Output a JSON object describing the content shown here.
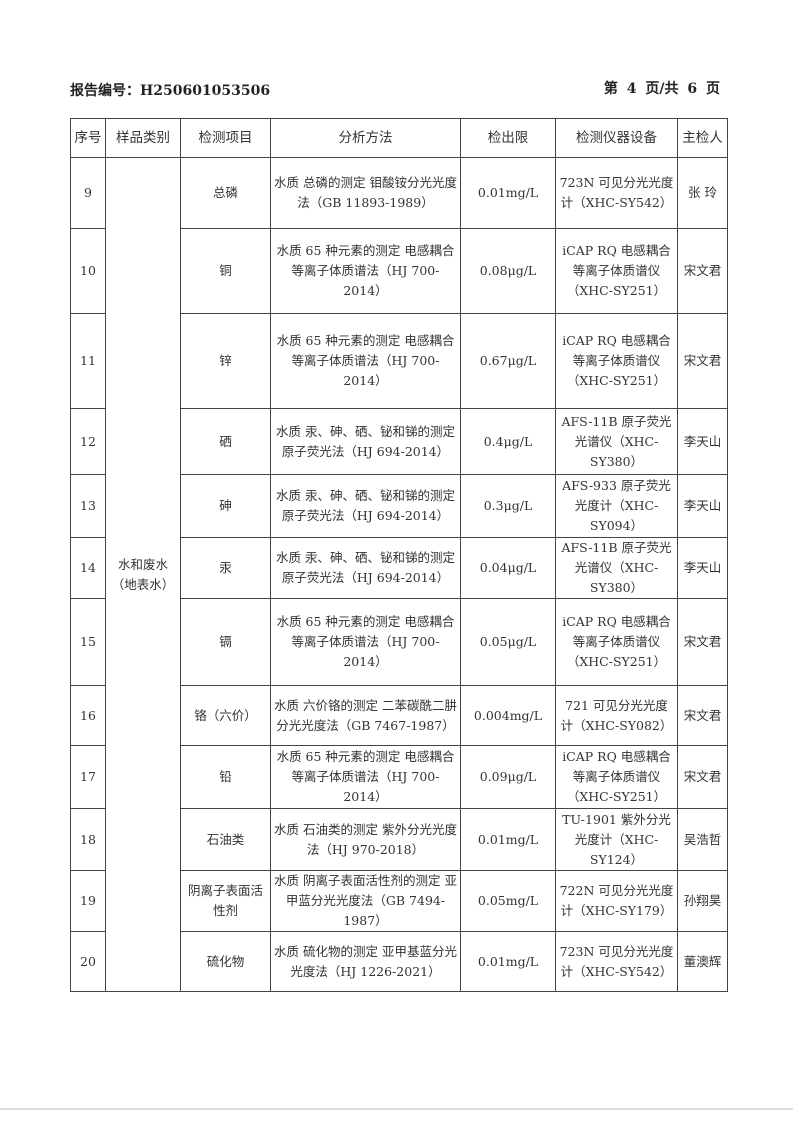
{
  "header": {
    "report_no_label": "报告编号：H250601053506",
    "page_label": "第 4 页/共 6 页"
  },
  "table": {
    "columns": [
      "序号",
      "样品类别",
      "检测项目",
      "分析方法",
      "检出限",
      "检测仪器设备",
      "主检人"
    ],
    "sample_category": "水和废水（地表水）",
    "rows": [
      {
        "no": "9",
        "item": "总磷",
        "method": "水质 总磷的测定 钼酸铵分光光度法（GB 11893-1989）",
        "limit": "0.01mg/L",
        "instrument": "723N 可见分光光度计（XHC-SY542）",
        "inspector": "张 玲"
      },
      {
        "no": "10",
        "item": "铜",
        "method": "水质 65 种元素的测定 电感耦合等离子体质谱法（HJ 700-2014）",
        "limit": "0.08μg/L",
        "instrument": "iCAP RQ 电感耦合等离子体质谱仪（XHC-SY251）",
        "inspector": "宋文君"
      },
      {
        "no": "11",
        "item": "锌",
        "method": "水质 65 种元素的测定 电感耦合等离子体质谱法（HJ 700-2014）",
        "limit": "0.67μg/L",
        "instrument": "iCAP RQ 电感耦合等离子体质谱仪（XHC-SY251）",
        "inspector": "宋文君"
      },
      {
        "no": "12",
        "item": "硒",
        "method": "水质 汞、砷、硒、铋和锑的测定 原子荧光法（HJ 694-2014）",
        "limit": "0.4μg/L",
        "instrument": "AFS-11B 原子荧光光谱仪（XHC-SY380）",
        "inspector": "李天山"
      },
      {
        "no": "13",
        "item": "砷",
        "method": "水质 汞、砷、硒、铋和锑的测定 原子荧光法（HJ 694-2014）",
        "limit": "0.3μg/L",
        "instrument": "AFS-933 原子荧光光度计（XHC-SY094）",
        "inspector": "李天山"
      },
      {
        "no": "14",
        "item": "汞",
        "method": "水质 汞、砷、硒、铋和锑的测定 原子荧光法（HJ 694-2014）",
        "limit": "0.04μg/L",
        "instrument": "AFS-11B 原子荧光光谱仪（XHC-SY380）",
        "inspector": "李天山"
      },
      {
        "no": "15",
        "item": "镉",
        "method": "水质 65 种元素的测定 电感耦合等离子体质谱法（HJ 700-2014）",
        "limit": "0.05μg/L",
        "instrument": "iCAP RQ 电感耦合等离子体质谱仪（XHC-SY251）",
        "inspector": "宋文君"
      },
      {
        "no": "16",
        "item": "铬（六价）",
        "method": "水质 六价铬的测定 二苯碳酰二肼分光光度法（GB 7467-1987）",
        "limit": "0.004mg/L",
        "instrument": "721 可见分光光度计（XHC-SY082）",
        "inspector": "宋文君"
      },
      {
        "no": "17",
        "item": "铅",
        "method": "水质 65 种元素的测定 电感耦合等离子体质谱法（HJ 700-2014）",
        "limit": "0.09μg/L",
        "instrument": "iCAP RQ 电感耦合等离子体质谱仪（XHC-SY251）",
        "inspector": "宋文君"
      },
      {
        "no": "18",
        "item": "石油类",
        "method": "水质 石油类的测定 紫外分光光度法（HJ 970-2018）",
        "limit": "0.01mg/L",
        "instrument": "TU-1901 紫外分光光度计（XHC-SY124）",
        "inspector": "吴浩哲"
      },
      {
        "no": "19",
        "item": "阴离子表面活性剂",
        "method": "水质 阴离子表面活性剂的测定 亚甲蓝分光光度法（GB 7494-1987）",
        "limit": "0.05mg/L",
        "instrument": "722N 可见分光光度计（XHC-SY179）",
        "inspector": "孙翔昊"
      },
      {
        "no": "20",
        "item": "硫化物",
        "method": "水质 硫化物的测定 亚甲基蓝分光光度法（HJ 1226-2021）",
        "limit": "0.01mg/L",
        "instrument": "723N 可见分光光度计（XHC-SY542）",
        "inspector": "董澳辉"
      }
    ]
  }
}
